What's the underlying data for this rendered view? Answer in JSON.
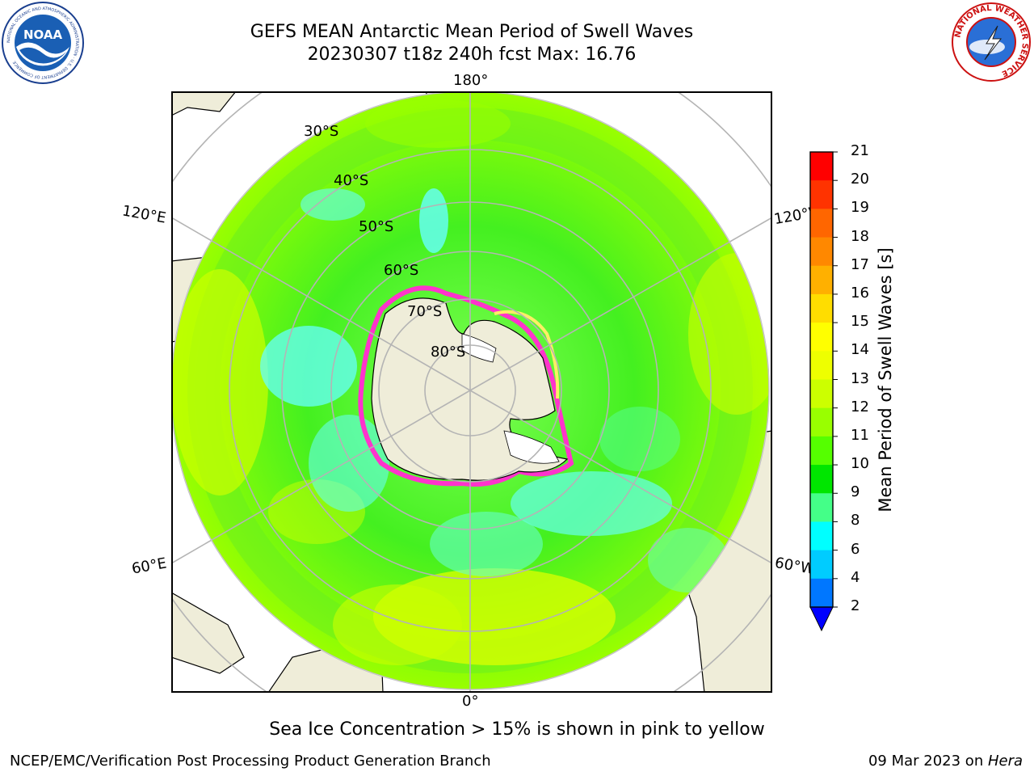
{
  "header": {
    "title_line1": "GEFS MEAN Antarctic Mean Period of Swell Waves",
    "title_line2": "20230307 t18z 240h fcst   Max: 16.76"
  },
  "logos": {
    "left": "noaa-logo",
    "right": "national-weather-service-logo",
    "nws_ring_text": "NATIONAL WEATHER SERVICE",
    "noaa_ring_text": "NATIONAL OCEANIC AND ATMOSPHERIC ADMINISTRATION · U.S. DEPARTMENT OF COMMERCE",
    "noaa_center_text": "NOAA"
  },
  "map": {
    "projection": "south-polar-stereographic",
    "longitude_labels": {
      "top": "180°",
      "bottom": "0°",
      "upper_left": "120°E",
      "upper_right": "120°W",
      "lower_left": "60°E",
      "lower_right": "60°W"
    },
    "latitude_labels": [
      "30°S",
      "40°S",
      "50°S",
      "60°S",
      "70°S",
      "80°S"
    ],
    "colors": {
      "land": "#efedd9",
      "grid": "#b4b4b4",
      "sea_ice_pink": "#ff33cc",
      "sea_ice_yellow": "#ffee66"
    }
  },
  "colorbar": {
    "title": "Mean Period of Swell Waves [s]",
    "tick_labels": [
      "21",
      "20",
      "19",
      "18",
      "17",
      "16",
      "15",
      "14",
      "13",
      "12",
      "11",
      "10",
      "9",
      "8",
      "6",
      "4",
      "2"
    ],
    "colors_top_to_bottom": [
      "#ff0000",
      "#ff3300",
      "#ff6600",
      "#ff8800",
      "#ffb000",
      "#ffdd00",
      "#ffff00",
      "#eeff00",
      "#ccff00",
      "#99ff00",
      "#55ff00",
      "#00e600",
      "#44ff88",
      "#99ffee",
      "#44ffff",
      "#00ffff",
      "#00ccff",
      "#0077ff"
    ],
    "under_color": "#0000ff"
  },
  "chart_data": {
    "type": "heatmap",
    "title": "GEFS MEAN Antarctic Mean Period of Swell Waves",
    "subtitle": "20230307 t18z 240h fcst   Max: 16.76",
    "variable": "Mean Period of Swell Waves [s]",
    "max_value": 16.76,
    "colorbar_levels": [
      2,
      4,
      6,
      8,
      9,
      10,
      11,
      12,
      13,
      14,
      15,
      16,
      17,
      18,
      19,
      20,
      21
    ],
    "latitude_circles": [
      "30°S",
      "40°S",
      "50°S",
      "60°S",
      "70°S",
      "80°S"
    ],
    "meridians": [
      "0°",
      "60°W",
      "120°W",
      "180°",
      "120°E",
      "60°E"
    ]
  },
  "footer": {
    "note": "Sea Ice Concentration > 15% is shown in pink to yellow",
    "left": "NCEP/EMC/Verification Post Processing Product Generation Branch",
    "right_date": "09 Mar 2023 on ",
    "right_host": "Hera"
  }
}
